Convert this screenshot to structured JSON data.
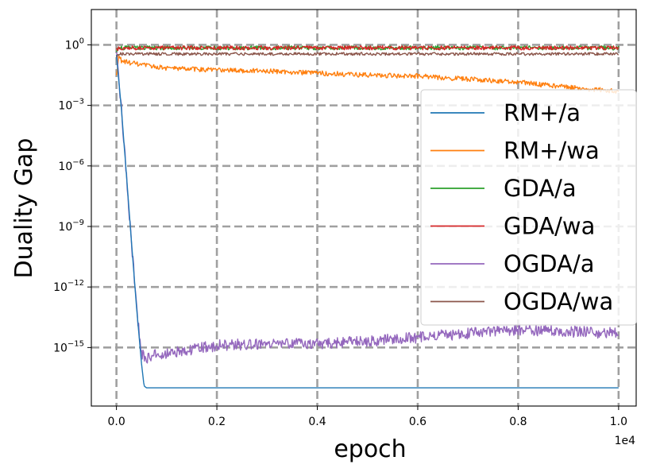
{
  "chart_data": {
    "type": "line",
    "title": "",
    "xlabel": "epoch",
    "ylabel": "Duality Gap",
    "x_multiplier_label": "1e4",
    "yscale": "log",
    "xlim": [
      -500,
      10350
    ],
    "ylog_lim": [
      -17.9,
      1.75
    ],
    "grid": true,
    "legend_position": "right",
    "x_ticks": [
      {
        "value": 0,
        "label": "0.0"
      },
      {
        "value": 2000,
        "label": "0.2"
      },
      {
        "value": 4000,
        "label": "0.4"
      },
      {
        "value": 6000,
        "label": "0.6"
      },
      {
        "value": 8000,
        "label": "0.8"
      },
      {
        "value": 10000,
        "label": "1.0"
      }
    ],
    "y_ticks": [
      {
        "log": 0,
        "base": "10",
        "exp": "0"
      },
      {
        "log": -3,
        "base": "10",
        "exp": "−3"
      },
      {
        "log": -6,
        "base": "10",
        "exp": "−6"
      },
      {
        "log": -9,
        "base": "10",
        "exp": "−9"
      },
      {
        "log": -12,
        "base": "10",
        "exp": "−12"
      },
      {
        "log": -15,
        "base": "10",
        "exp": "−15"
      }
    ],
    "series": [
      {
        "name": "RM+/a",
        "color": "#1f77b4",
        "noise": 0,
        "x": [
          0,
          100,
          200,
          300,
          400,
          500,
          550,
          600,
          10000
        ],
        "log_y": [
          -0.5,
          -3.2,
          -6.5,
          -9.8,
          -13.0,
          -15.8,
          -16.9,
          -17.0,
          -17.0
        ]
      },
      {
        "name": "RM+/wa",
        "color": "#ff7f0e",
        "noise": 0.12,
        "x": [
          0,
          50,
          100,
          500,
          1000,
          2000,
          3000,
          4000,
          5000,
          6000,
          7000,
          8000,
          9000,
          10000
        ],
        "log_y": [
          -1.6,
          -0.5,
          -0.8,
          -1.0,
          -1.15,
          -1.25,
          -1.3,
          -1.4,
          -1.5,
          -1.55,
          -1.7,
          -1.85,
          -2.1,
          -2.3
        ]
      },
      {
        "name": "GDA/a",
        "color": "#2ca02c",
        "noise": 0.1,
        "x": [
          0,
          50,
          10000
        ],
        "log_y": [
          -0.3,
          -0.15,
          -0.15
        ]
      },
      {
        "name": "GDA/wa",
        "color": "#d62728",
        "noise": 0.1,
        "x": [
          0,
          50,
          10000
        ],
        "log_y": [
          -0.25,
          -0.15,
          -0.15
        ]
      },
      {
        "name": "OGDA/a",
        "color": "#9467bd",
        "noise": 0.28,
        "x": [
          0,
          100,
          200,
          300,
          400,
          500,
          600,
          700,
          1000,
          1500,
          2000,
          3000,
          4000,
          5000,
          6000,
          7000,
          8000,
          9000,
          10000
        ],
        "log_y": [
          -0.3,
          -3.2,
          -6.5,
          -9.8,
          -13.0,
          -15.3,
          -15.6,
          -15.4,
          -15.3,
          -15.1,
          -14.9,
          -14.8,
          -14.8,
          -14.7,
          -14.5,
          -14.3,
          -14.1,
          -14.2,
          -14.3
        ]
      },
      {
        "name": "OGDA/wa",
        "color": "#8c564b",
        "noise": 0.07,
        "x": [
          0,
          50,
          10000
        ],
        "log_y": [
          -0.6,
          -0.45,
          -0.45
        ]
      }
    ]
  }
}
